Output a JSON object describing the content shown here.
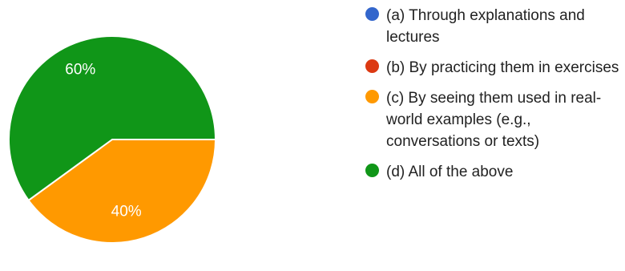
{
  "chart_data": {
    "type": "pie",
    "slices": [
      {
        "label": "(a) Through explanations and lectures",
        "value": 0,
        "display": "",
        "color": "#3366cc"
      },
      {
        "label": "(b) By practicing them in exercises",
        "value": 0,
        "display": "",
        "color": "#dc3912"
      },
      {
        "label": "(c) By seeing them used in real-world examples (e.g., conversations or texts)",
        "value": 40,
        "display": "40%",
        "color": "#ff9900"
      },
      {
        "label": "(d) All of the above",
        "value": 60,
        "display": "60%",
        "color": "#109618"
      }
    ],
    "legend_position": "right"
  }
}
